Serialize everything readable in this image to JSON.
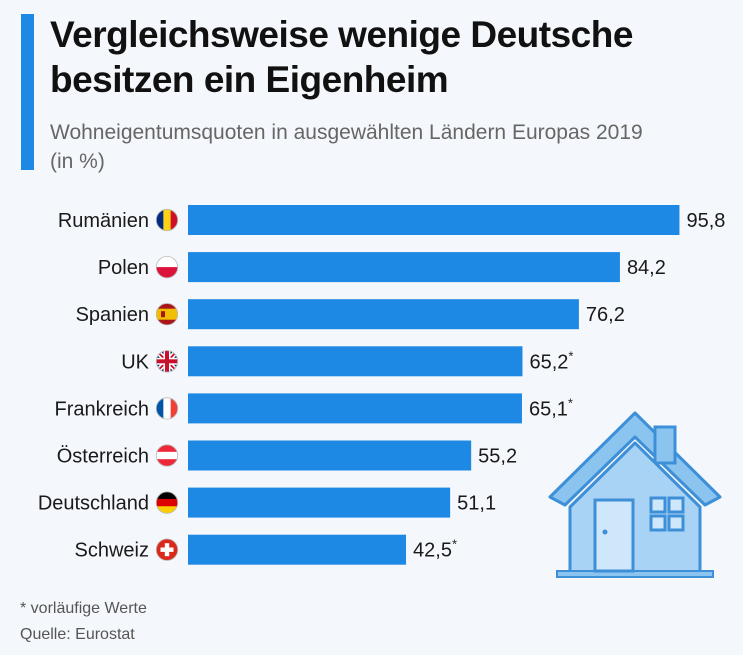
{
  "header": {
    "title": "Vergleichsweise wenige Deutsche besitzen ein Eigenheim",
    "subtitle": "Wohneigentumsquoten in ausgewählten Ländern Europas 2019 (in %)"
  },
  "footer": {
    "note": "* vorläufige Werte",
    "source": "Quelle: Eurostat"
  },
  "colors": {
    "bar": "#1e88e5",
    "accent": "#1e88e5",
    "house": "#7fbcee",
    "house_outline": "#3d8fd8"
  },
  "chart_data": {
    "type": "bar",
    "orientation": "horizontal",
    "categories": [
      "Rumänien",
      "Polen",
      "Spanien",
      "UK",
      "Frankreich",
      "Österreich",
      "Deutschland",
      "Schweiz"
    ],
    "values": [
      95.8,
      84.2,
      76.2,
      65.2,
      65.1,
      55.2,
      51.1,
      42.5
    ],
    "value_labels": [
      "95,8",
      "84,2",
      "76,2",
      "65,2",
      "65,1",
      "55,2",
      "51,1",
      "42,5"
    ],
    "provisional": [
      false,
      false,
      false,
      true,
      true,
      false,
      false,
      true
    ],
    "flags": [
      "flag-romania-icon",
      "flag-poland-icon",
      "flag-spain-icon",
      "flag-uk-icon",
      "flag-france-icon",
      "flag-austria-icon",
      "flag-germany-icon",
      "flag-switzerland-icon"
    ],
    "unit": "%",
    "grid": false,
    "legend": "none"
  }
}
